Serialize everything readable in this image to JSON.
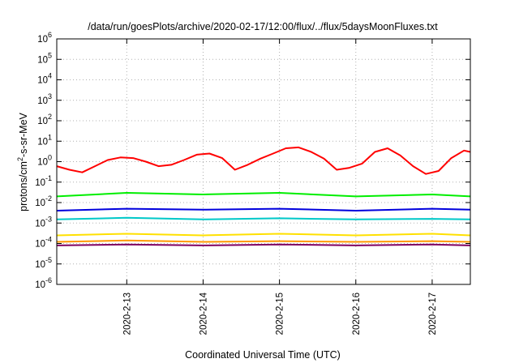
{
  "chart_data": {
    "type": "line",
    "title": "/data/run/goesPlots/archive/2020-02-17/12:00/flux/../flux/5daysMoonFluxes.txt",
    "xlabel": "Coordinated Universal Time (UTC)",
    "ylabel": {
      "base": "protons/cm",
      "sup": "2",
      "rest": "-s-sr-MeV"
    },
    "x_range": [
      "2020-02-12T02:00",
      "2020-02-17T12:00"
    ],
    "x_ticks": [
      "2020-2-13",
      "2020-2-14",
      "2020-2-15",
      "2020-2-16",
      "2020-2-17"
    ],
    "y_scale": "log",
    "ylim": [
      1e-06,
      1000000.0
    ],
    "y_ticks": [
      {
        "base": "10",
        "exp": "-6"
      },
      {
        "base": "10",
        "exp": "-5"
      },
      {
        "base": "10",
        "exp": "-4"
      },
      {
        "base": "10",
        "exp": "-3"
      },
      {
        "base": "10",
        "exp": "-2"
      },
      {
        "base": "10",
        "exp": "-1"
      },
      {
        "base": "10",
        "exp": "0"
      },
      {
        "base": "10",
        "exp": "1"
      },
      {
        "base": "10",
        "exp": "2"
      },
      {
        "base": "10",
        "exp": "3"
      },
      {
        "base": "10",
        "exp": "4"
      },
      {
        "base": "10",
        "exp": "5"
      },
      {
        "base": "10",
        "exp": "6"
      }
    ],
    "grid": true,
    "series": [
      {
        "color": "#ff0000",
        "x": [
          "2020-02-12T02:00",
          "2020-02-12T06:00",
          "2020-02-12T10:00",
          "2020-02-12T14:00",
          "2020-02-12T18:00",
          "2020-02-12T22:00",
          "2020-02-13T02:00",
          "2020-02-13T06:00",
          "2020-02-13T10:00",
          "2020-02-13T14:00",
          "2020-02-13T18:00",
          "2020-02-13T22:00",
          "2020-02-14T02:00",
          "2020-02-14T06:00",
          "2020-02-14T10:00",
          "2020-02-14T14:00",
          "2020-02-14T18:00",
          "2020-02-14T22:00",
          "2020-02-15T02:00",
          "2020-02-15T06:00",
          "2020-02-15T10:00",
          "2020-02-15T14:00",
          "2020-02-15T18:00",
          "2020-02-15T22:00",
          "2020-02-16T02:00",
          "2020-02-16T06:00",
          "2020-02-16T10:00",
          "2020-02-16T14:00",
          "2020-02-16T18:00",
          "2020-02-16T22:00",
          "2020-02-17T02:00",
          "2020-02-17T06:00",
          "2020-02-17T10:00",
          "2020-02-17T12:00"
        ],
        "y": [
          0.6,
          0.4,
          0.3,
          0.6,
          1.2,
          1.6,
          1.5,
          1.0,
          0.6,
          0.7,
          1.2,
          2.2,
          2.5,
          1.5,
          0.4,
          0.7,
          1.4,
          2.5,
          4.5,
          5.0,
          3.0,
          1.4,
          0.4,
          0.5,
          0.8,
          3.0,
          4.5,
          2.0,
          0.6,
          0.25,
          0.35,
          1.5,
          3.5,
          3.0
        ]
      },
      {
        "color": "#00ee00",
        "x": [
          "2020-02-12T02:00",
          "2020-02-13T00:00",
          "2020-02-14T00:00",
          "2020-02-15T00:00",
          "2020-02-16T00:00",
          "2020-02-17T00:00",
          "2020-02-17T12:00"
        ],
        "y": [
          0.02,
          0.03,
          0.025,
          0.03,
          0.02,
          0.025,
          0.02
        ]
      },
      {
        "color": "#0000dd",
        "x": [
          "2020-02-12T02:00",
          "2020-02-13T00:00",
          "2020-02-14T00:00",
          "2020-02-15T00:00",
          "2020-02-16T00:00",
          "2020-02-17T00:00",
          "2020-02-17T12:00"
        ],
        "y": [
          0.004,
          0.005,
          0.0045,
          0.005,
          0.004,
          0.005,
          0.0045
        ]
      },
      {
        "color": "#00c8c8",
        "x": [
          "2020-02-12T02:00",
          "2020-02-13T00:00",
          "2020-02-14T00:00",
          "2020-02-15T00:00",
          "2020-02-16T00:00",
          "2020-02-17T00:00",
          "2020-02-17T12:00"
        ],
        "y": [
          0.0015,
          0.0018,
          0.0015,
          0.0017,
          0.0015,
          0.0016,
          0.0015
        ]
      },
      {
        "color": "#ffe000",
        "x": [
          "2020-02-12T02:00",
          "2020-02-13T00:00",
          "2020-02-14T00:00",
          "2020-02-15T00:00",
          "2020-02-16T00:00",
          "2020-02-17T00:00",
          "2020-02-17T12:00"
        ],
        "y": [
          0.00025,
          0.0003,
          0.00025,
          0.0003,
          0.00025,
          0.0003,
          0.00025
        ]
      },
      {
        "color": "#ff9900",
        "x": [
          "2020-02-12T02:00",
          "2020-02-13T00:00",
          "2020-02-14T00:00",
          "2020-02-15T00:00",
          "2020-02-16T00:00",
          "2020-02-17T00:00",
          "2020-02-17T12:00"
        ],
        "y": [
          0.00012,
          0.00014,
          0.00012,
          0.00013,
          0.00012,
          0.00013,
          0.00012
        ]
      },
      {
        "color": "#800060",
        "x": [
          "2020-02-12T02:00",
          "2020-02-13T00:00",
          "2020-02-14T00:00",
          "2020-02-15T00:00",
          "2020-02-16T00:00",
          "2020-02-17T00:00",
          "2020-02-17T12:00"
        ],
        "y": [
          8e-05,
          9e-05,
          8e-05,
          9e-05,
          8e-05,
          9e-05,
          8e-05
        ]
      }
    ]
  }
}
